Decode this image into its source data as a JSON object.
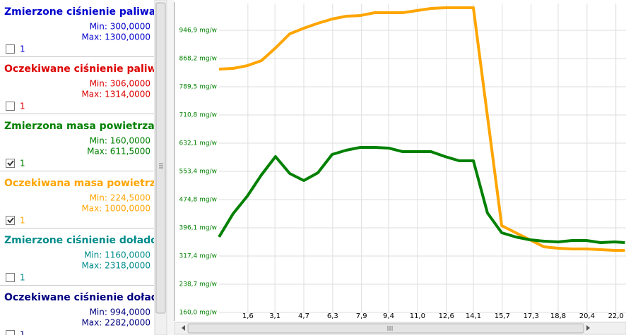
{
  "panel": {
    "items": [
      {
        "title": "Zmierzone ciśnienie paliwa",
        "min": "Min: 300,0000",
        "max": "Max: 1300,0000",
        "checkbox_label": "1",
        "checked": false,
        "color": "#0000cc"
      },
      {
        "title": "Oczekiwane ciśnienie paliwa",
        "min": "Min: 306,0000",
        "max": "Max: 1314,0000",
        "checkbox_label": "1",
        "checked": false,
        "color": "#dd0000"
      },
      {
        "title": "Zmierzona masa powietrza",
        "min": "Min: 160,0000",
        "max": "Max: 611,5000",
        "checkbox_label": "1",
        "checked": true,
        "color": "#008000"
      },
      {
        "title": "Oczekiwana masa powietrza",
        "min": "Min: 224,5000",
        "max": "Max: 1000,0000",
        "checkbox_label": "1",
        "checked": true,
        "color": "#ffa500"
      },
      {
        "title": "Zmierzone ciśnienie doładowania",
        "min": "Min: 1160,0000",
        "max": "Max: 2318,0000",
        "checkbox_label": "1",
        "checked": false,
        "color": "#008b8b"
      },
      {
        "title": "Oczekiwane ciśnienie doładowania",
        "min": "Min: 994,0000",
        "max": "Max: 2282,0000",
        "checkbox_label": "1",
        "checked": false,
        "color": "#000080"
      }
    ]
  },
  "chart_data": {
    "type": "line",
    "xlim": [
      0,
      22.56
    ],
    "xticks": [
      {
        "value": 1.6,
        "label": "1,6"
      },
      {
        "value": 3.1,
        "label": "3,1"
      },
      {
        "value": 4.7,
        "label": "4,7"
      },
      {
        "value": 6.3,
        "label": "6,3"
      },
      {
        "value": 7.9,
        "label": "7,9"
      },
      {
        "value": 9.4,
        "label": "9,4"
      },
      {
        "value": 11.0,
        "label": "11,0"
      },
      {
        "value": 12.6,
        "label": "12,6"
      },
      {
        "value": 14.1,
        "label": "14,1"
      },
      {
        "value": 15.7,
        "label": "15,7"
      },
      {
        "value": 17.3,
        "label": "17,3"
      },
      {
        "value": 18.8,
        "label": "18,8"
      },
      {
        "value": 20.4,
        "label": "20,4"
      },
      {
        "value": 22.0,
        "label": "22,0"
      }
    ],
    "ylim": [
      160,
      1021.7
    ],
    "yticks": [
      {
        "value": 160.0,
        "label": "160,0 mg/w"
      },
      {
        "value": 238.7,
        "label": "238,7 mg/w"
      },
      {
        "value": 317.4,
        "label": "317,4 mg/w"
      },
      {
        "value": 396.1,
        "label": "396,1 mg/w"
      },
      {
        "value": 474.8,
        "label": "474,8 mg/w"
      },
      {
        "value": 553.4,
        "label": "553,4 mg/w"
      },
      {
        "value": 632.1,
        "label": "632,1 mg/w"
      },
      {
        "value": 710.8,
        "label": "710,8 mg/w"
      },
      {
        "value": 789.5,
        "label": "789,5 mg/w"
      },
      {
        "value": 868.2,
        "label": "868,2 mg/w"
      },
      {
        "value": 946.9,
        "label": "946,9 mg/w"
      }
    ],
    "ytick_color": "#008000",
    "grid": true,
    "x": [
      0,
      0.78,
      1.57,
      2.35,
      3.13,
      3.92,
      4.7,
      5.48,
      6.27,
      7.05,
      7.83,
      8.62,
      9.4,
      10.18,
      10.97,
      11.75,
      12.53,
      13.32,
      14.1,
      14.88,
      15.67,
      16.45,
      17.23,
      18.02,
      18.8,
      19.58,
      20.37,
      21.15,
      21.93,
      22.5
    ],
    "series": [
      {
        "color": "#ffa500",
        "values": [
          838.7,
          840.7,
          848.5,
          862.3,
          897.7,
          937.1,
          952.8,
          966.6,
          978.4,
          986.3,
          988.2,
          996.1,
          996.1,
          996.1,
          1002.0,
          1007.9,
          1009.9,
          1009.9,
          1009.9,
          706.9,
          402.0,
          382.3,
          362.6,
          342.9,
          339.0,
          337.0,
          337.0,
          335.1,
          333.1,
          333.1
        ]
      },
      {
        "color": "#008000",
        "values": [
          370.5,
          435.4,
          484.6,
          543.6,
          594.8,
          547.6,
          527.9,
          549.5,
          600.7,
          612.5,
          620.3,
          620.3,
          618.4,
          608.5,
          608.5,
          608.5,
          594.8,
          583.0,
          583.0,
          437.4,
          382.3,
          370.5,
          362.6,
          358.7,
          356.7,
          360.6,
          360.6,
          354.8,
          356.7,
          354.8
        ]
      }
    ]
  }
}
